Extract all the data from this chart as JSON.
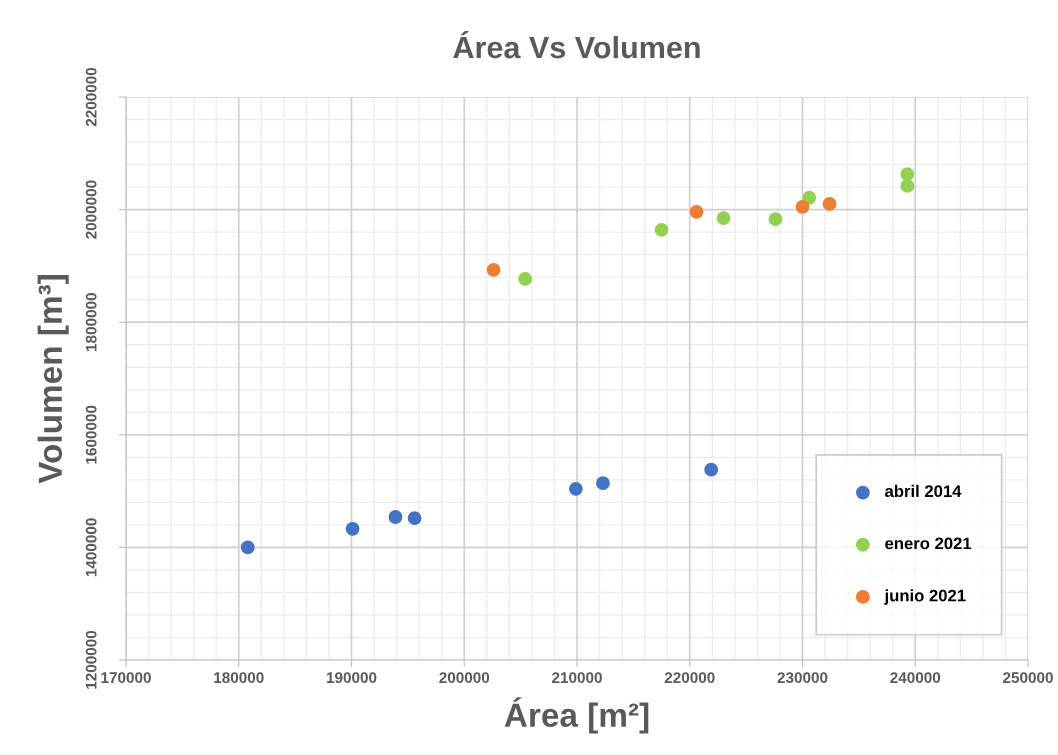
{
  "chart_data": {
    "type": "scatter",
    "title": "Área Vs Volumen",
    "xlabel": "Área [m²]",
    "ylabel": "Volumen [m³]",
    "xlim": [
      170000,
      250000
    ],
    "xticks": [
      170000,
      180000,
      190000,
      200000,
      210000,
      220000,
      230000,
      240000,
      250000
    ],
    "ylim": [
      1200000,
      2200000
    ],
    "yticks": [
      1200000,
      1400000,
      1600000,
      1800000,
      2000000,
      2200000
    ],
    "grid": true,
    "legend": "bottom right",
    "marker": "circle",
    "series": [
      {
        "name": "abril 2014",
        "color": "#4472c4",
        "x": [
          180800,
          190100,
          193900,
          195600,
          209900,
          212300,
          221900
        ],
        "values": [
          1400000,
          1433000,
          1454000,
          1452000,
          1504000,
          1514000,
          1538000
        ]
      },
      {
        "name": "enero 2021",
        "color": "#92d050",
        "x": [
          205400,
          217500,
          223000,
          227600,
          230600,
          239300,
          239300
        ],
        "values": [
          1877000,
          1964000,
          1985000,
          1983000,
          2021000,
          2063000,
          2042000
        ]
      },
      {
        "name": "junio 2021",
        "color": "#ed7d31",
        "x": [
          202600,
          220600,
          230000,
          232400
        ],
        "values": [
          1893000,
          1996000,
          2005000,
          2010000
        ]
      }
    ]
  }
}
